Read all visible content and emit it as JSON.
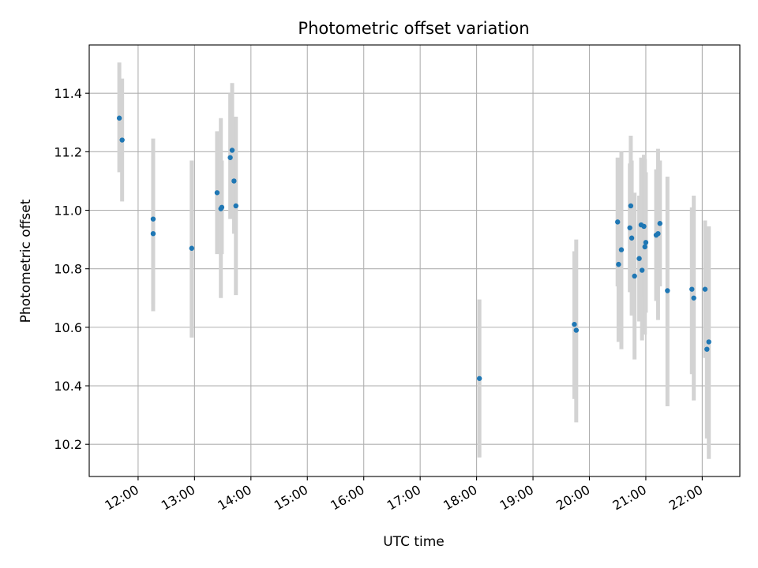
{
  "chart_data": {
    "type": "scatter",
    "title": "Photometric offset variation",
    "xlabel": "UTC time",
    "ylabel": "Photometric offset",
    "grid": true,
    "x_ticks": [
      "12:00",
      "13:00",
      "14:00",
      "15:00",
      "16:00",
      "17:00",
      "18:00",
      "19:00",
      "20:00",
      "21:00",
      "22:00"
    ],
    "y_ticks": [
      "10.2",
      "10.4",
      "10.6",
      "10.8",
      "11.0",
      "11.2",
      "11.4"
    ],
    "xlim": [
      "11:08",
      "22:40"
    ],
    "ylim": [
      10.09,
      11.565
    ],
    "colors": {
      "point": "#1f77b4",
      "errorbar": "#d3d3d3",
      "grid": "#b0b0b0"
    },
    "points": [
      {
        "x": "11:40",
        "y": 11.315,
        "ylo": 11.13,
        "yhi": 11.505
      },
      {
        "x": "11:43",
        "y": 11.24,
        "ylo": 11.03,
        "yhi": 11.45
      },
      {
        "x": "12:16",
        "y": 10.97,
        "ylo": 10.68,
        "yhi": 11.245
      },
      {
        "x": "12:16",
        "y": 10.92,
        "ylo": 10.655,
        "yhi": 11.185
      },
      {
        "x": "12:57",
        "y": 10.87,
        "ylo": 10.565,
        "yhi": 11.17
      },
      {
        "x": "13:24",
        "y": 11.06,
        "ylo": 10.85,
        "yhi": 11.27
      },
      {
        "x": "13:28",
        "y": 11.005,
        "ylo": 10.7,
        "yhi": 11.315
      },
      {
        "x": "13:29",
        "y": 11.01,
        "ylo": 10.85,
        "yhi": 11.17
      },
      {
        "x": "13:38",
        "y": 11.18,
        "ylo": 10.97,
        "yhi": 11.4
      },
      {
        "x": "13:40",
        "y": 11.205,
        "ylo": 10.98,
        "yhi": 11.435
      },
      {
        "x": "13:42",
        "y": 11.1,
        "ylo": 10.92,
        "yhi": 11.28
      },
      {
        "x": "13:44",
        "y": 11.015,
        "ylo": 10.71,
        "yhi": 11.32
      },
      {
        "x": "18:03",
        "y": 10.425,
        "ylo": 10.155,
        "yhi": 10.695
      },
      {
        "x": "19:44",
        "y": 10.61,
        "ylo": 10.355,
        "yhi": 10.86
      },
      {
        "x": "19:46",
        "y": 10.59,
        "ylo": 10.275,
        "yhi": 10.9
      },
      {
        "x": "20:30",
        "y": 10.96,
        "ylo": 10.74,
        "yhi": 11.18
      },
      {
        "x": "20:31",
        "y": 10.815,
        "ylo": 10.55,
        "yhi": 11.08
      },
      {
        "x": "20:34",
        "y": 10.865,
        "ylo": 10.525,
        "yhi": 11.2
      },
      {
        "x": "20:43",
        "y": 10.94,
        "ylo": 10.72,
        "yhi": 11.16
      },
      {
        "x": "20:44",
        "y": 11.015,
        "ylo": 10.775,
        "yhi": 11.255
      },
      {
        "x": "20:45",
        "y": 10.905,
        "ylo": 10.64,
        "yhi": 11.17
      },
      {
        "x": "20:48",
        "y": 10.775,
        "ylo": 10.49,
        "yhi": 11.06
      },
      {
        "x": "20:53",
        "y": 10.835,
        "ylo": 10.62,
        "yhi": 11.05
      },
      {
        "x": "20:55",
        "y": 10.95,
        "ylo": 10.72,
        "yhi": 11.18
      },
      {
        "x": "20:56",
        "y": 10.795,
        "ylo": 10.555,
        "yhi": 11.035
      },
      {
        "x": "20:58",
        "y": 10.945,
        "ylo": 10.7,
        "yhi": 11.19
      },
      {
        "x": "20:59",
        "y": 10.875,
        "ylo": 10.575,
        "yhi": 11.175
      },
      {
        "x": "21:00",
        "y": 10.89,
        "ylo": 10.65,
        "yhi": 11.13
      },
      {
        "x": "21:11",
        "y": 10.915,
        "ylo": 10.69,
        "yhi": 11.14
      },
      {
        "x": "21:13",
        "y": 10.92,
        "ylo": 10.625,
        "yhi": 11.21
      },
      {
        "x": "21:15",
        "y": 10.955,
        "ylo": 10.74,
        "yhi": 11.17
      },
      {
        "x": "21:23",
        "y": 10.725,
        "ylo": 10.33,
        "yhi": 11.115
      },
      {
        "x": "21:49",
        "y": 10.73,
        "ylo": 10.44,
        "yhi": 11.01
      },
      {
        "x": "21:51",
        "y": 10.7,
        "ylo": 10.35,
        "yhi": 11.05
      },
      {
        "x": "22:03",
        "y": 10.73,
        "ylo": 10.495,
        "yhi": 10.965
      },
      {
        "x": "22:05",
        "y": 10.525,
        "ylo": 10.22,
        "yhi": 10.825
      },
      {
        "x": "22:07",
        "y": 10.55,
        "ylo": 10.15,
        "yhi": 10.945
      }
    ]
  }
}
